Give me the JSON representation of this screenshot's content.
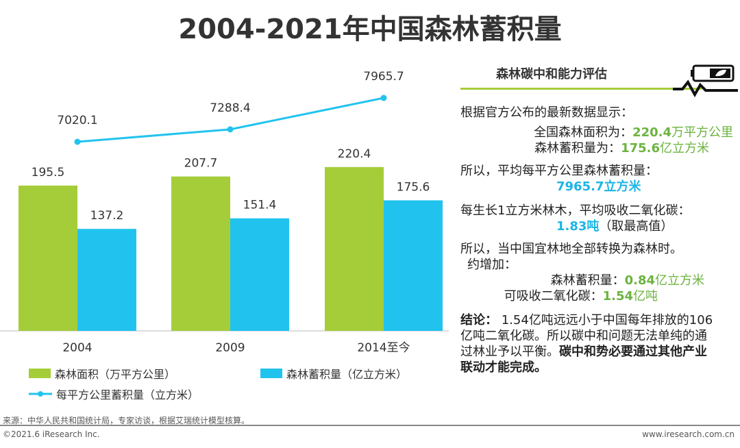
{
  "title": "2004-2021年中国森林蓄积量",
  "chart_data": {
    "type": "bar+line",
    "categories": [
      "2004",
      "2009",
      "2014至今"
    ],
    "series": [
      {
        "name": "森林面积（万平方公里）",
        "type": "bar",
        "color": "#a4cd39",
        "values": [
          195.5,
          207.7,
          220.4
        ]
      },
      {
        "name": "森林蓄积量（亿立方米）",
        "type": "bar",
        "color": "#21c3ee",
        "values": [
          137.2,
          151.4,
          175.6
        ]
      },
      {
        "name": "每平方公里蓄积量（立方米）",
        "type": "line",
        "color": "#21c3ee",
        "values": [
          7020.1,
          7288.4,
          7965.7
        ]
      }
    ],
    "legend_position": "bottom"
  },
  "panel": {
    "header": "森林碳中和能力评估",
    "icon": "battery-leaf-pulse-icon",
    "intro": "根据官方公布的最新数据显示：",
    "area_label": "全国森林面积为：",
    "area_value": "220.4",
    "area_unit": "万平方公里",
    "stock_label": "森林蓄积量为：",
    "stock_value": "175.6",
    "stock_unit": "亿立方米",
    "avg_label": "所以，平均每平方公里森林蓄积量：",
    "avg_value": "7965.7立方米",
    "absorb_label": "每生长1立方米林木，平均吸收二氧化碳：",
    "absorb_value": "1.83吨",
    "absorb_note": "（取最高值）",
    "convert_label": "所以，当中国宜林地全部转换为森林时。",
    "increase_label": "约增加：",
    "inc_stock_label": "森林蓄积量：",
    "inc_stock_value": "0.84",
    "inc_stock_unit": "亿立方米",
    "inc_co2_label": "可吸收二氧化碳：",
    "inc_co2_value": "1.54",
    "inc_co2_unit": "亿吨",
    "conclusion_label": "结论：",
    "conclusion_text": "1.54亿吨远远小于中国每年排放的106亿吨二氧化碳。所以碳中和问题无法单纯的通过林业予以平衡。",
    "conclusion_bold": "碳中和势必要通过其他产业联动才能完成。"
  },
  "footer": {
    "source": "来源：中华人民共和国统计局，专家访谈，根据艾瑞统计模型核算。",
    "copyright": "©2021.6 iResearch Inc.",
    "url": "www.iresearch.com.cn"
  }
}
